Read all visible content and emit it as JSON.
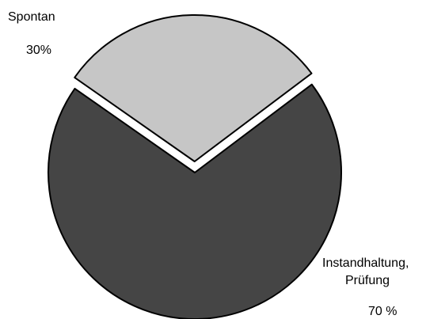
{
  "chart_data": {
    "type": "pie",
    "title": "",
    "slices": [
      {
        "label": "Spontan",
        "value_label": "30%",
        "value": 30,
        "color": "#c6c6c6",
        "exploded": true
      },
      {
        "label": "Instandhaltung, Prüfung",
        "label_lines": [
          "Instandhaltung,",
          "Prüfung"
        ],
        "value_label": "70 %",
        "value": 70,
        "color": "#454545",
        "exploded": false
      }
    ],
    "legend": "none"
  }
}
